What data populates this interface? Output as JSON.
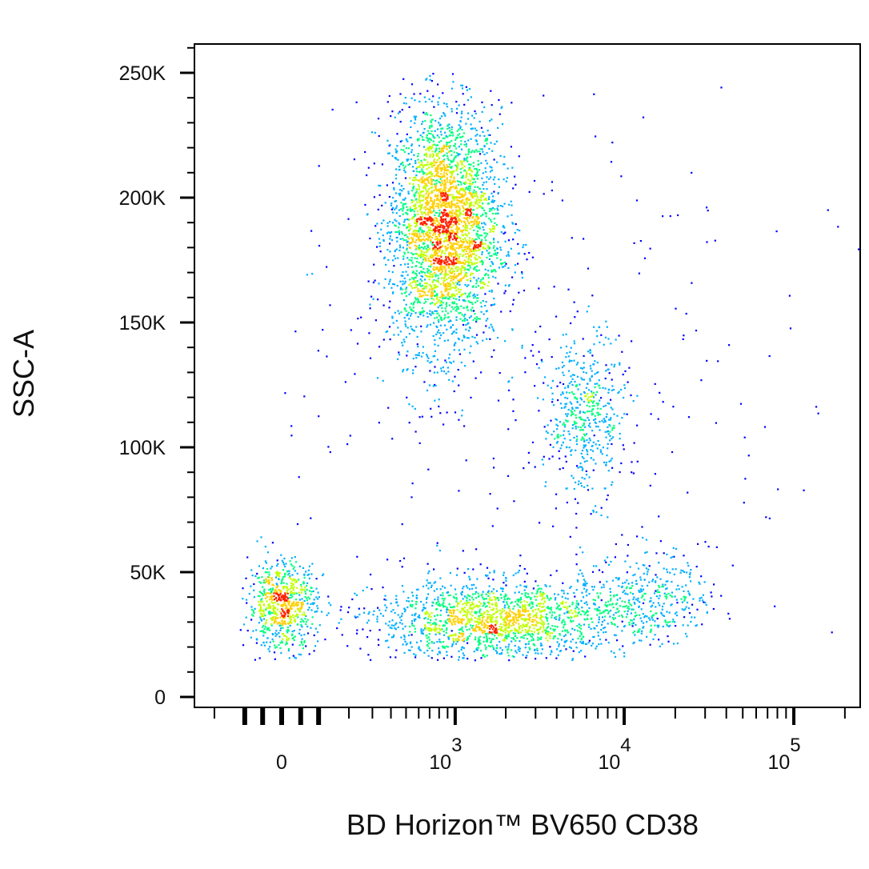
{
  "chart_data": {
    "type": "scatter",
    "style": "density-colored dot plot (pseudocolor)",
    "xlabel": "BD Horizon™ BV650 CD38",
    "ylabel": "SSC-A",
    "x_scale": "biexponential",
    "x_ticks": [
      {
        "value": 0,
        "label": "0"
      },
      {
        "value": 1000,
        "label": "10",
        "exp": "3"
      },
      {
        "value": 10000,
        "label": "10",
        "exp": "4"
      },
      {
        "value": 100000,
        "label": "10",
        "exp": "5"
      }
    ],
    "y_ticks": [
      {
        "value": 0,
        "label": "0"
      },
      {
        "value": 50000,
        "label": "50K"
      },
      {
        "value": 100000,
        "label": "100K"
      },
      {
        "value": 150000,
        "label": "150K"
      },
      {
        "value": 200000,
        "label": "200K"
      },
      {
        "value": 250000,
        "label": "250K"
      }
    ],
    "ylim": [
      0,
      262000
    ],
    "xlim": [
      -250,
      262000
    ],
    "grid": false,
    "density_colors": [
      "#0000ff",
      "#00b0ff",
      "#00ff80",
      "#c0ff00",
      "#ffd000",
      "#ff2000"
    ],
    "populations": [
      {
        "x_center": 850,
        "x_log_sd": 0.17,
        "y_center": 188000,
        "y_sd": 24000,
        "count": 3200
      },
      {
        "x_center": 5800,
        "x_log_sd": 0.12,
        "y_center": 113000,
        "y_sd": 16000,
        "count": 500
      },
      {
        "x_center": 0,
        "x_sd": 45,
        "y_center": 37000,
        "y_sd": 9000,
        "count": 700
      },
      {
        "x_center": 1800,
        "x_log_sd": 0.38,
        "y_center": 31000,
        "y_sd": 8000,
        "count": 1700
      },
      {
        "x_center": 14000,
        "x_log_sd": 0.17,
        "y_center": 41000,
        "y_sd": 9000,
        "count": 350
      },
      {
        "x_center": 3000,
        "x_log_sd": 0.9,
        "y_center": 110000,
        "y_sd": 65000,
        "count": 300
      }
    ]
  }
}
